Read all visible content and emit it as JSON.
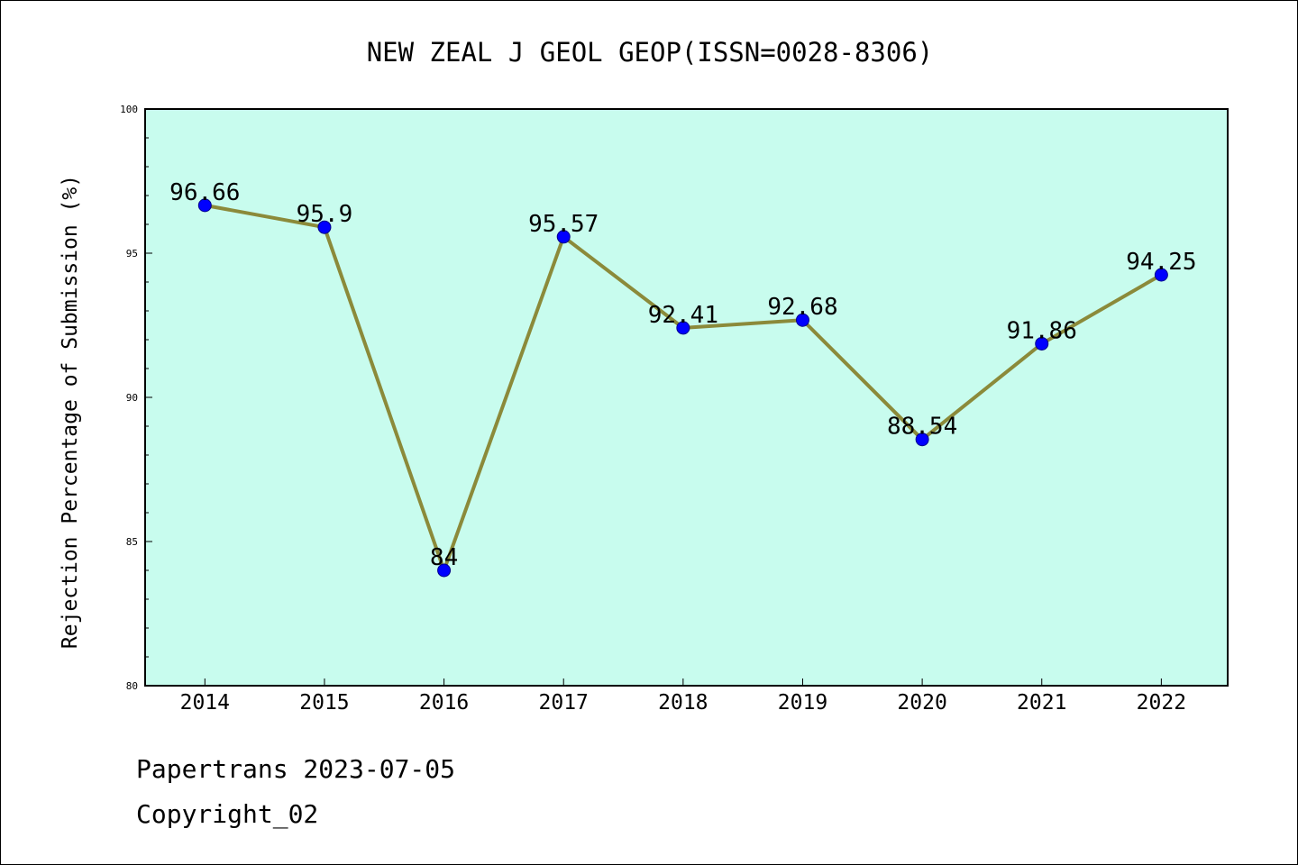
{
  "chart_data": {
    "type": "line",
    "title": "NEW ZEAL J GEOL GEOP(ISSN=0028-8306)",
    "xlabel": "",
    "ylabel": "Rejection Percentage of Submission (%)",
    "categories": [
      "2014",
      "2015",
      "2016",
      "2017",
      "2018",
      "2019",
      "2020",
      "2021",
      "2022"
    ],
    "series": [
      {
        "values": [
          96.66,
          95.9,
          84,
          95.57,
          92.41,
          92.68,
          88.54,
          91.86,
          94.25
        ],
        "labels": [
          "96.66",
          "95.9",
          "84",
          "95.57",
          "92.41",
          "92.68",
          "88.54",
          "91.86",
          "94.25"
        ]
      }
    ],
    "ylim": [
      80,
      100
    ],
    "yticks": [
      "80",
      "85",
      "90",
      "95",
      "100"
    ],
    "grid": false,
    "legend": "none",
    "colors": {
      "plot_background": "#c8fcee",
      "line": "#8b8a3a",
      "marker": "#0000ff",
      "marker_edge": "#00008b"
    }
  },
  "footer": {
    "line1": "Papertrans 2023-07-05",
    "line2": "Copyright_02"
  }
}
